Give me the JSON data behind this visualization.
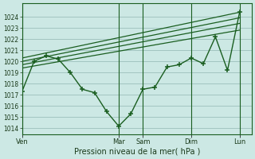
{
  "background_color": "#cce8e4",
  "grid_color": "#9bbfbb",
  "line_color": "#1a5e20",
  "xlabel": "Pression niveau de la mer( hPa )",
  "ylim": [
    1013.5,
    1025.2
  ],
  "yticks": [
    1014,
    1015,
    1016,
    1017,
    1018,
    1019,
    1020,
    1021,
    1022,
    1023,
    1024
  ],
  "xtick_labels": [
    "Ven",
    "Mar",
    "Sam",
    "Dim",
    "Lun"
  ],
  "xtick_positions": [
    0,
    48,
    60,
    84,
    108
  ],
  "xlim": [
    0,
    114
  ],
  "vlines": [
    0,
    48,
    60,
    84,
    108
  ],
  "main_x": [
    0,
    6,
    12,
    18,
    24,
    30,
    36,
    42,
    48,
    54,
    60,
    66,
    72,
    78,
    84,
    90,
    96,
    102,
    108
  ],
  "main_y": [
    1017.3,
    1020.0,
    1020.5,
    1020.2,
    1019.0,
    1017.5,
    1017.2,
    1015.5,
    1014.2,
    1015.3,
    1017.5,
    1017.7,
    1019.5,
    1019.7,
    1020.3,
    1019.8,
    1022.2,
    1019.2,
    1024.4
  ],
  "trend1_x": [
    0,
    108
  ],
  "trend1_y": [
    1020.3,
    1024.4
  ],
  "trend2_x": [
    0,
    108
  ],
  "trend2_y": [
    1020.0,
    1023.9
  ],
  "trend3_x": [
    0,
    108
  ],
  "trend3_y": [
    1019.7,
    1023.4
  ],
  "trend4_x": [
    0,
    108
  ],
  "trend4_y": [
    1019.4,
    1022.8
  ]
}
